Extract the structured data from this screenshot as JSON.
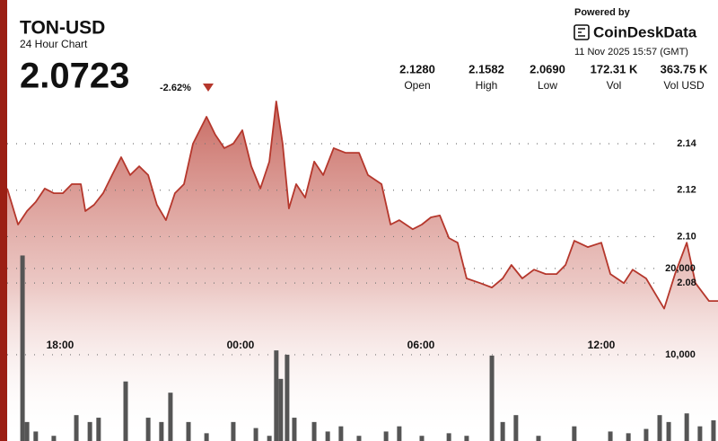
{
  "chart_data": {
    "type": "area",
    "title": "TON-USD",
    "subtitle": "24 Hour Chart",
    "last_price": "2.0723",
    "change": "-2.62%",
    "stats": [
      {
        "value": "2.1280",
        "label": "Open"
      },
      {
        "value": "2.1582",
        "label": "High"
      },
      {
        "value": "2.0690",
        "label": "Low"
      },
      {
        "value": "172.31 K",
        "label": "Vol"
      },
      {
        "value": "363.75 K",
        "label": "Vol USD"
      }
    ],
    "powered_by": "Powered by",
    "brand": "CoinDeskData",
    "timestamp": "11 Nov 2025 15:57 (GMT)",
    "color": "#b5372c",
    "x": [
      16.24,
      16.6,
      16.9,
      17.19,
      17.49,
      17.79,
      18.09,
      18.39,
      18.69,
      18.84,
      19.13,
      19.43,
      19.73,
      20.03,
      20.33,
      20.63,
      20.93,
      21.22,
      21.52,
      21.82,
      22.12,
      22.42,
      22.87,
      23.16,
      23.46,
      23.76,
      24.06,
      24.36,
      24.66,
      24.96,
      25.19,
      25.4,
      25.61,
      25.85,
      26.15,
      26.45,
      26.75,
      27.1,
      27.49,
      27.94,
      28.24,
      28.69,
      28.99,
      29.28,
      29.73,
      30.03,
      30.33,
      30.63,
      30.93,
      31.22,
      31.52,
      31.97,
      32.36,
      32.72,
      33.01,
      33.37,
      33.76,
      34.15,
      34.51,
      34.81,
      35.1,
      35.55,
      36.0,
      36.3,
      36.75,
      37.04,
      37.49,
      38.09,
      38.45,
      38.84,
      39.13,
      39.58,
      39.88
    ],
    "values": [
      2.1207,
      2.1052,
      2.111,
      2.1149,
      2.1207,
      2.1187,
      2.1187,
      2.1226,
      2.1226,
      2.111,
      2.1137,
      2.1187,
      2.1265,
      2.1342,
      2.1265,
      2.1303,
      2.1265,
      2.1137,
      2.1071,
      2.1187,
      2.1226,
      2.14,
      2.1516,
      2.1439,
      2.1381,
      2.14,
      2.1458,
      2.1303,
      2.1207,
      2.1323,
      2.1582,
      2.14,
      2.1121,
      2.1226,
      2.1168,
      2.1323,
      2.1265,
      2.1381,
      2.1361,
      2.1361,
      2.1265,
      2.1226,
      2.1052,
      2.1071,
      2.1032,
      2.1052,
      2.1083,
      2.1091,
      2.0994,
      2.0974,
      2.082,
      2.08,
      2.0781,
      2.082,
      2.0878,
      2.082,
      2.0858,
      2.0839,
      2.0839,
      2.0878,
      2.0982,
      2.0955,
      2.0974,
      2.0839,
      2.08,
      2.0858,
      2.082,
      2.069,
      2.0839,
      2.0974,
      2.08,
      2.0723,
      2.0723
    ],
    "xlim": [
      16.24,
      39.88
    ],
    "xticks": [
      {
        "value": 18,
        "label": "18:00"
      },
      {
        "value": 24,
        "label": "00:00"
      },
      {
        "value": 30,
        "label": "06:00"
      },
      {
        "value": 36,
        "label": "12:00"
      }
    ],
    "ylim": [
      2.012,
      2.1632
    ],
    "yticks": [
      2.08,
      {
        "value": 2.1,
        "label": "2.10"
      },
      2.12,
      2.14
    ],
    "y2lim": [
      0,
      40700
    ],
    "y2ticks": [
      {
        "value": 10000,
        "label": "10,000"
      },
      {
        "value": 20000,
        "label": "20,000"
      }
    ],
    "grid": true,
    "bars": {
      "type": "bar",
      "axis": "y2",
      "color": "#555555",
      "x": [
        16.75,
        16.9,
        17.19,
        17.79,
        18.54,
        18.99,
        19.28,
        20.18,
        20.93,
        21.37,
        21.67,
        22.27,
        22.87,
        23.76,
        24.51,
        24.96,
        25.19,
        25.34,
        25.55,
        25.79,
        26.45,
        26.9,
        27.34,
        27.94,
        28.84,
        29.28,
        30.03,
        30.93,
        31.52,
        32.36,
        32.72,
        33.16,
        33.91,
        35.1,
        36.3,
        36.9,
        37.49,
        37.94,
        38.24,
        38.84,
        39.28,
        39.73
      ],
      "values": [
        21500,
        2200,
        1100,
        600,
        3000,
        2200,
        2700,
        6900,
        2700,
        2200,
        5600,
        2200,
        900,
        2200,
        1500,
        600,
        10500,
        7200,
        10000,
        2700,
        2200,
        1100,
        1700,
        600,
        1100,
        1700,
        600,
        900,
        600,
        9900,
        2200,
        3000,
        600,
        1700,
        1100,
        900,
        1400,
        3000,
        2200,
        3200,
        1700,
        2400
      ]
    }
  }
}
